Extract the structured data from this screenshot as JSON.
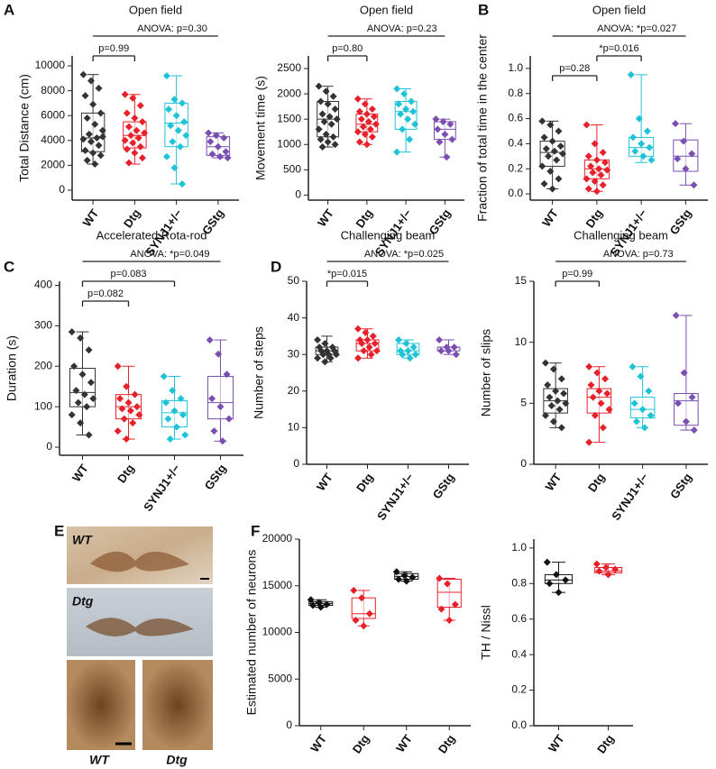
{
  "figure": {
    "panel_labels": [
      "A",
      "B",
      "C",
      "D",
      "E",
      "F"
    ],
    "micrographs": [
      "WT",
      "Dtg",
      "WT",
      "Dtg"
    ]
  },
  "chart_data": [
    {
      "type": "box",
      "title": "Open field",
      "y_label": "Total Distance (cm)",
      "categories": [
        "WT",
        "Dtg",
        "SYNJ1+/−",
        "GStg"
      ],
      "ylim": [
        -800,
        10800
      ],
      "yticks": [
        0,
        2000,
        4000,
        6000,
        8000,
        10000
      ],
      "brackets": [
        {
          "label": "ANOVA: p=0.30",
          "between": [
            "WT",
            "GStg"
          ]
        },
        {
          "label": "p=0.99",
          "between": [
            "WT",
            "Dtg"
          ]
        }
      ],
      "groups": [
        {
          "color": "#333333",
          "whisker": [
            2100,
            9300
          ],
          "quartiles": [
            3100,
            4200,
            6200
          ],
          "points": [
            9300,
            8800,
            8200,
            7600,
            6900,
            6200,
            5800,
            5300,
            4800,
            4500,
            4200,
            4100,
            3900,
            3600,
            3200,
            3000,
            2800,
            2400,
            2100,
            4300
          ]
        },
        {
          "color": "#e8202a",
          "whisker": [
            2100,
            7700
          ],
          "quartiles": [
            3400,
            4400,
            5500
          ],
          "points": [
            7700,
            7400,
            6800,
            6200,
            5800,
            5500,
            5100,
            4800,
            4600,
            4400,
            4200,
            4000,
            3800,
            3500,
            3300,
            3000,
            2600,
            2200
          ]
        },
        {
          "color": "#1fc3d6",
          "whisker": [
            500,
            9200
          ],
          "quartiles": [
            3500,
            5400,
            7000
          ],
          "points": [
            9200,
            7300,
            7000,
            6500,
            6000,
            5500,
            5200,
            4800,
            4400,
            3900,
            3500,
            2700,
            1800,
            500
          ]
        },
        {
          "color": "#7a4fb0",
          "whisker": [
            2600,
            4600
          ],
          "quartiles": [
            2800,
            3500,
            4300
          ],
          "points": [
            4600,
            4400,
            4200,
            3900,
            3500,
            3100,
            2900,
            2700,
            2600
          ]
        }
      ]
    },
    {
      "type": "box",
      "title": "Open field",
      "y_label": "Movement time (s)",
      "categories": [
        "WT",
        "Dtg",
        "SYNJ1+/−",
        "GStg"
      ],
      "ylim": [
        -100,
        2750
      ],
      "yticks": [
        0,
        500,
        1000,
        1500,
        2000,
        2500
      ],
      "brackets": [
        {
          "label": "ANOVA: p=0.23",
          "between": [
            "WT",
            "GStg"
          ]
        },
        {
          "label": "p=0.80",
          "between": [
            "WT",
            "Dtg"
          ]
        }
      ],
      "groups": [
        {
          "color": "#333333",
          "whisker": [
            950,
            2150
          ],
          "quartiles": [
            1150,
            1500,
            1850
          ],
          "points": [
            2150,
            2050,
            1950,
            1850,
            1800,
            1700,
            1600,
            1550,
            1500,
            1450,
            1400,
            1300,
            1200,
            1150,
            1100,
            1050,
            1000,
            950
          ]
        },
        {
          "color": "#e8202a",
          "whisker": [
            1000,
            1900
          ],
          "quartiles": [
            1250,
            1400,
            1600
          ],
          "points": [
            1900,
            1800,
            1700,
            1650,
            1600,
            1550,
            1500,
            1450,
            1400,
            1350,
            1300,
            1250,
            1200,
            1150,
            1050,
            1000
          ]
        },
        {
          "color": "#1fc3d6",
          "whisker": [
            850,
            2100
          ],
          "quartiles": [
            1300,
            1650,
            1850
          ],
          "points": [
            2100,
            2000,
            1850,
            1800,
            1700,
            1650,
            1600,
            1500,
            1400,
            1300,
            1100,
            850
          ]
        },
        {
          "color": "#7a4fb0",
          "whisker": [
            750,
            1500
          ],
          "quartiles": [
            1100,
            1300,
            1450
          ],
          "points": [
            1500,
            1450,
            1400,
            1300,
            1200,
            1100,
            1050,
            750
          ]
        }
      ]
    },
    {
      "type": "box",
      "title": "Open field",
      "y_label": "Fraction of total time in the center",
      "categories": [
        "WT",
        "Dtg",
        "SYNJ1+/−",
        "GStg"
      ],
      "ylim": [
        -0.05,
        1.1
      ],
      "yticks": [
        {
          "value": 0,
          "label": "0.0"
        },
        0.2,
        0.4,
        0.6,
        0.8,
        {
          "value": 1,
          "label": "1.0"
        }
      ],
      "brackets": [
        {
          "label": "ANOVA: *p=0.027",
          "between": [
            "WT",
            "GStg"
          ]
        },
        {
          "label": "*p=0.016",
          "between": [
            "Dtg",
            "SYNJ1+/−"
          ]
        },
        {
          "label": "p=0.28",
          "between": [
            "WT",
            "Dtg"
          ]
        }
      ],
      "groups": [
        {
          "color": "#333333",
          "whisker": [
            0.04,
            0.58
          ],
          "quartiles": [
            0.22,
            0.33,
            0.42
          ],
          "points": [
            0.58,
            0.55,
            0.5,
            0.45,
            0.42,
            0.38,
            0.36,
            0.34,
            0.32,
            0.3,
            0.27,
            0.22,
            0.18,
            0.12,
            0.08,
            0.04
          ]
        },
        {
          "color": "#e8202a",
          "whisker": [
            0.02,
            0.55
          ],
          "quartiles": [
            0.12,
            0.2,
            0.27
          ],
          "points": [
            0.55,
            0.4,
            0.33,
            0.3,
            0.27,
            0.25,
            0.22,
            0.2,
            0.19,
            0.17,
            0.15,
            0.12,
            0.1,
            0.07,
            0.04,
            0.02
          ]
        },
        {
          "color": "#1fc3d6",
          "whisker": [
            0.25,
            0.95
          ],
          "quartiles": [
            0.3,
            0.37,
            0.45
          ],
          "points": [
            0.95,
            0.6,
            0.5,
            0.45,
            0.4,
            0.37,
            0.34,
            0.3,
            0.27
          ]
        },
        {
          "color": "#7a4fb0",
          "whisker": [
            0.07,
            0.56
          ],
          "quartiles": [
            0.18,
            0.3,
            0.43
          ],
          "points": [
            0.56,
            0.42,
            0.32,
            0.28,
            0.2,
            0.07
          ]
        }
      ]
    },
    {
      "type": "box",
      "title": "Accelerated Rota-rod",
      "y_label": "Duration (s)",
      "categories": [
        "WT",
        "Dtg",
        "SYNJ1+/−",
        "GStg"
      ],
      "ylim": [
        -20,
        410
      ],
      "yticks": [
        0,
        100,
        200,
        300,
        400
      ],
      "brackets": [
        {
          "label": "ANOVA: *p=0.049",
          "between": [
            "WT",
            "GStg"
          ]
        },
        {
          "label": "p=0.083",
          "between": [
            "WT",
            "SYNJ1+/−"
          ]
        },
        {
          "label": "p=0.082",
          "between": [
            "WT",
            "Dtg"
          ]
        }
      ],
      "groups": [
        {
          "color": "#333333",
          "whisker": [
            30,
            285
          ],
          "quartiles": [
            100,
            135,
            195
          ],
          "points": [
            285,
            270,
            240,
            200,
            180,
            160,
            140,
            130,
            120,
            110,
            100,
            80,
            60,
            30
          ]
        },
        {
          "color": "#e8202a",
          "whisker": [
            20,
            200
          ],
          "quartiles": [
            70,
            100,
            130
          ],
          "points": [
            200,
            150,
            130,
            120,
            110,
            100,
            95,
            90,
            80,
            70,
            60,
            40,
            20
          ]
        },
        {
          "color": "#1fc3d6",
          "whisker": [
            20,
            175
          ],
          "quartiles": [
            50,
            85,
            115
          ],
          "points": [
            175,
            140,
            120,
            110,
            90,
            80,
            70,
            50,
            30,
            20
          ]
        },
        {
          "color": "#7a4fb0",
          "whisker": [
            15,
            265
          ],
          "quartiles": [
            70,
            110,
            175
          ],
          "points": [
            265,
            230,
            180,
            120,
            100,
            70,
            40,
            15
          ]
        }
      ]
    },
    {
      "type": "box",
      "title": "Challenging beam",
      "y_label": "Number of steps",
      "categories": [
        "WT",
        "Dtg",
        "SYNJ1+/−",
        "GStg"
      ],
      "ylim": [
        0,
        50
      ],
      "yticks": [
        0,
        10,
        20,
        30,
        40,
        50
      ],
      "brackets": [
        {
          "label": "ANOVA: *p=0.025",
          "between": [
            "WT",
            "GStg"
          ]
        },
        {
          "label": "*p=0.015",
          "between": [
            "WT",
            "Dtg"
          ]
        }
      ],
      "groups": [
        {
          "color": "#333333",
          "whisker": [
            28,
            35
          ],
          "quartiles": [
            30,
            31,
            32
          ],
          "points": [
            34,
            33,
            32,
            32,
            31,
            31,
            31,
            30,
            30,
            30,
            29,
            29,
            28
          ]
        },
        {
          "color": "#e8202a",
          "whisker": [
            29,
            37
          ],
          "quartiles": [
            31,
            33,
            34
          ],
          "points": [
            37,
            36,
            35,
            34,
            34,
            33,
            33,
            32,
            31,
            31,
            30,
            29
          ]
        },
        {
          "color": "#1fc3d6",
          "whisker": [
            29,
            34
          ],
          "quartiles": [
            30,
            31,
            33
          ],
          "points": [
            34,
            33,
            32,
            31,
            31,
            30,
            30,
            29
          ]
        },
        {
          "color": "#7a4fb0",
          "whisker": [
            30,
            34
          ],
          "quartiles": [
            31,
            32,
            32
          ],
          "points": [
            34,
            32,
            32,
            31,
            31,
            30
          ]
        }
      ]
    },
    {
      "type": "box",
      "title": "Challenging beam",
      "y_label": "Number of slips",
      "categories": [
        "WT",
        "Dtg",
        "SYNJ1+/−",
        "GStg"
      ],
      "ylim": [
        0,
        15
      ],
      "yticks": [
        0,
        5,
        10,
        15
      ],
      "brackets": [
        {
          "label": "ANOVA: p=0.73",
          "between": [
            "WT",
            "GStg"
          ]
        },
        {
          "label": "p=0.99",
          "between": [
            "WT",
            "Dtg"
          ]
        }
      ],
      "groups": [
        {
          "color": "#333333",
          "whisker": [
            3,
            8.3
          ],
          "quartiles": [
            4.2,
            5.2,
            6.2
          ],
          "points": [
            8.3,
            7.8,
            7,
            6.5,
            6,
            5.8,
            5.5,
            5.2,
            5,
            4.8,
            4.5,
            4,
            3.5,
            3
          ]
        },
        {
          "color": "#e8202a",
          "whisker": [
            1.8,
            8
          ],
          "quartiles": [
            4.2,
            5.5,
            6.2
          ],
          "points": [
            8,
            7.5,
            7,
            6.5,
            6,
            5.8,
            5.5,
            5,
            4.5,
            4,
            3,
            1.8
          ]
        },
        {
          "color": "#1fc3d6",
          "whisker": [
            3,
            8
          ],
          "quartiles": [
            3.8,
            4.5,
            5.5
          ],
          "points": [
            8,
            7.2,
            6,
            5,
            4.5,
            4,
            3.5,
            3
          ]
        },
        {
          "color": "#7a4fb0",
          "whisker": [
            2.8,
            12.2
          ],
          "quartiles": [
            3.2,
            5.2,
            5.8
          ],
          "points": [
            12.2,
            7.5,
            5.5,
            5,
            3.5,
            2.8
          ]
        }
      ]
    },
    {
      "type": "box",
      "y_label": "Estimated number of neurons",
      "categories": [
        "WT",
        "Dtg",
        "WT",
        "Dtg"
      ],
      "ylim": [
        0,
        20000
      ],
      "yticks": [
        0,
        5000,
        10000,
        15000,
        20000
      ],
      "groups": [
        {
          "color": "#111111",
          "whisker": [
            12700,
            13500
          ],
          "quartiles": [
            12900,
            13100,
            13300
          ],
          "points": [
            13500,
            13200,
            13000,
            12900,
            12700
          ]
        },
        {
          "color": "#e8202a",
          "whisker": [
            10700,
            14500
          ],
          "quartiles": [
            11500,
            12000,
            13700
          ],
          "points": [
            14500,
            13700,
            12000,
            11300,
            10700
          ]
        },
        {
          "color": "#111111",
          "whisker": [
            15500,
            16500
          ],
          "quartiles": [
            15700,
            16000,
            16300
          ],
          "points": [
            16500,
            16100,
            15900,
            15700,
            15500
          ]
        },
        {
          "color": "#e8202a",
          "whisker": [
            11300,
            15800
          ],
          "quartiles": [
            12700,
            14300,
            15700
          ],
          "points": [
            15800,
            15200,
            13000,
            12500,
            11300
          ]
        }
      ]
    },
    {
      "type": "box",
      "y_label": "TH / Nissl",
      "categories": [
        "WT",
        "Dtg"
      ],
      "ylim": [
        0,
        1.05
      ],
      "yticks": [
        {
          "value": 0,
          "label": "0.0"
        },
        0.2,
        0.4,
        0.6,
        0.8,
        {
          "value": 1,
          "label": "1.0"
        }
      ],
      "groups": [
        {
          "color": "#111111",
          "whisker": [
            0.75,
            0.92
          ],
          "quartiles": [
            0.8,
            0.82,
            0.85
          ],
          "points": [
            0.92,
            0.85,
            0.82,
            0.8,
            0.75
          ]
        },
        {
          "color": "#e8202a",
          "whisker": [
            0.85,
            0.91
          ],
          "quartiles": [
            0.86,
            0.87,
            0.89
          ],
          "points": [
            0.91,
            0.89,
            0.88,
            0.87,
            0.85
          ]
        }
      ]
    }
  ]
}
